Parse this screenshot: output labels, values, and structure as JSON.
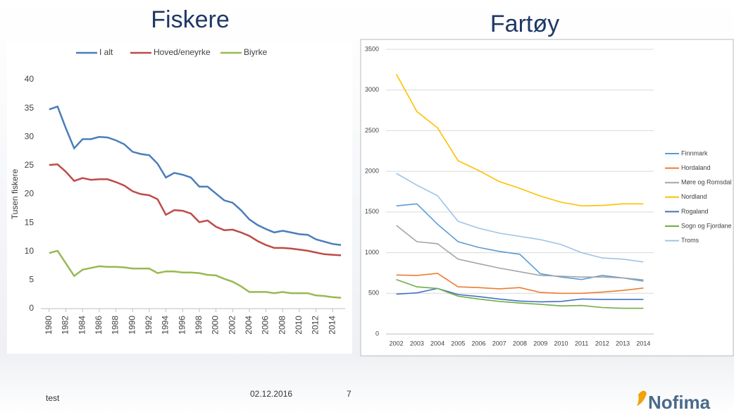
{
  "chart_data": [
    {
      "type": "line",
      "title": "Fiskere",
      "ylabel": "Tusen fiskere",
      "legend": "top",
      "grid": false,
      "x": [
        1980,
        1981,
        1982,
        1983,
        1984,
        1985,
        1986,
        1987,
        1988,
        1989,
        1990,
        1991,
        1992,
        1993,
        1994,
        1995,
        1996,
        1997,
        1998,
        1999,
        2000,
        2001,
        2002,
        2003,
        2004,
        2005,
        2006,
        2007,
        2008,
        2009,
        2010,
        2011,
        2012,
        2013,
        2014,
        2015
      ],
      "xlim": [
        1979,
        2015.5
      ],
      "xticks": [
        1980,
        1982,
        1984,
        1986,
        1988,
        1990,
        1992,
        1994,
        1996,
        1998,
        2000,
        2002,
        2004,
        2006,
        2008,
        2010,
        2012,
        2014
      ],
      "ylim": [
        0,
        40
      ],
      "yticks": [
        0,
        5,
        10,
        15,
        20,
        25,
        30,
        35,
        40
      ],
      "series": [
        {
          "name": "I alt",
          "color": "#4a7ebb",
          "values": [
            34.8,
            35.3,
            31.5,
            28.0,
            29.6,
            29.6,
            30.0,
            29.9,
            29.4,
            28.7,
            27.4,
            27.0,
            26.8,
            25.3,
            22.9,
            23.7,
            23.4,
            22.9,
            21.3,
            21.3,
            20.1,
            18.9,
            18.5,
            17.2,
            15.6,
            14.6,
            13.9,
            13.3,
            13.6,
            13.3,
            13.0,
            12.9,
            12.1,
            11.7,
            11.3,
            11.1
          ]
        },
        {
          "name": "Hoved/eneyrke",
          "color": "#be4b48",
          "values": [
            25.1,
            25.2,
            23.9,
            22.3,
            22.8,
            22.5,
            22.6,
            22.6,
            22.1,
            21.5,
            20.5,
            20.0,
            19.8,
            19.1,
            16.4,
            17.2,
            17.1,
            16.6,
            15.1,
            15.4,
            14.3,
            13.7,
            13.8,
            13.3,
            12.7,
            11.8,
            11.1,
            10.6,
            10.6,
            10.5,
            10.3,
            10.1,
            9.8,
            9.5,
            9.4,
            9.3
          ]
        },
        {
          "name": "Biyrke",
          "color": "#98b954",
          "values": [
            9.7,
            10.1,
            7.9,
            5.7,
            6.8,
            7.1,
            7.4,
            7.3,
            7.3,
            7.2,
            7.0,
            7.0,
            7.0,
            6.2,
            6.5,
            6.5,
            6.3,
            6.3,
            6.2,
            5.9,
            5.8,
            5.2,
            4.7,
            3.9,
            2.9,
            2.9,
            2.9,
            2.7,
            2.9,
            2.7,
            2.7,
            2.7,
            2.3,
            2.2,
            2.0,
            1.9
          ]
        }
      ]
    },
    {
      "type": "line",
      "title": "Fartøy",
      "legend": "right",
      "grid": true,
      "categories": [
        "2002",
        "2003",
        "2004",
        "2005",
        "2006",
        "2007",
        "2008",
        "2009",
        "2010",
        "2011",
        "2012",
        "2013",
        "2014"
      ],
      "ylim": [
        0,
        3500
      ],
      "yticks": [
        0,
        500,
        1000,
        1500,
        2000,
        2500,
        3000,
        3500
      ],
      "series": [
        {
          "name": "Finnmark",
          "color": "#5b9bd5",
          "values": [
            1575,
            1600,
            1350,
            1135,
            1065,
            1015,
            980,
            740,
            700,
            670,
            720,
            690,
            650
          ]
        },
        {
          "name": "Hordaland",
          "color": "#ed7d31",
          "values": [
            725,
            720,
            745,
            580,
            570,
            555,
            570,
            510,
            500,
            500,
            515,
            535,
            565
          ]
        },
        {
          "name": "Møre og Romsdal",
          "color": "#a5a5a5",
          "values": [
            1335,
            1135,
            1110,
            920,
            865,
            810,
            765,
            720,
            710,
            700,
            700,
            690,
            665
          ]
        },
        {
          "name": "Nordland",
          "color": "#ffc000",
          "values": [
            3195,
            2735,
            2535,
            2130,
            2010,
            1875,
            1790,
            1695,
            1620,
            1575,
            1580,
            1600,
            1600
          ]
        },
        {
          "name": "Rogaland",
          "color": "#4472c4",
          "values": [
            490,
            505,
            560,
            485,
            460,
            430,
            405,
            395,
            400,
            430,
            425,
            425,
            425
          ]
        },
        {
          "name": "Sogn og Fjordane",
          "color": "#70ad47",
          "values": [
            670,
            580,
            560,
            465,
            430,
            400,
            380,
            365,
            345,
            350,
            325,
            315,
            315
          ]
        },
        {
          "name": "Troms",
          "color": "#9dc3e6",
          "values": [
            1975,
            1830,
            1700,
            1385,
            1300,
            1240,
            1200,
            1160,
            1100,
            1000,
            935,
            920,
            885
          ]
        }
      ]
    }
  ],
  "footer": {
    "left": "test",
    "date": "02.12.2016",
    "page": "7",
    "logo": "Nofima"
  }
}
